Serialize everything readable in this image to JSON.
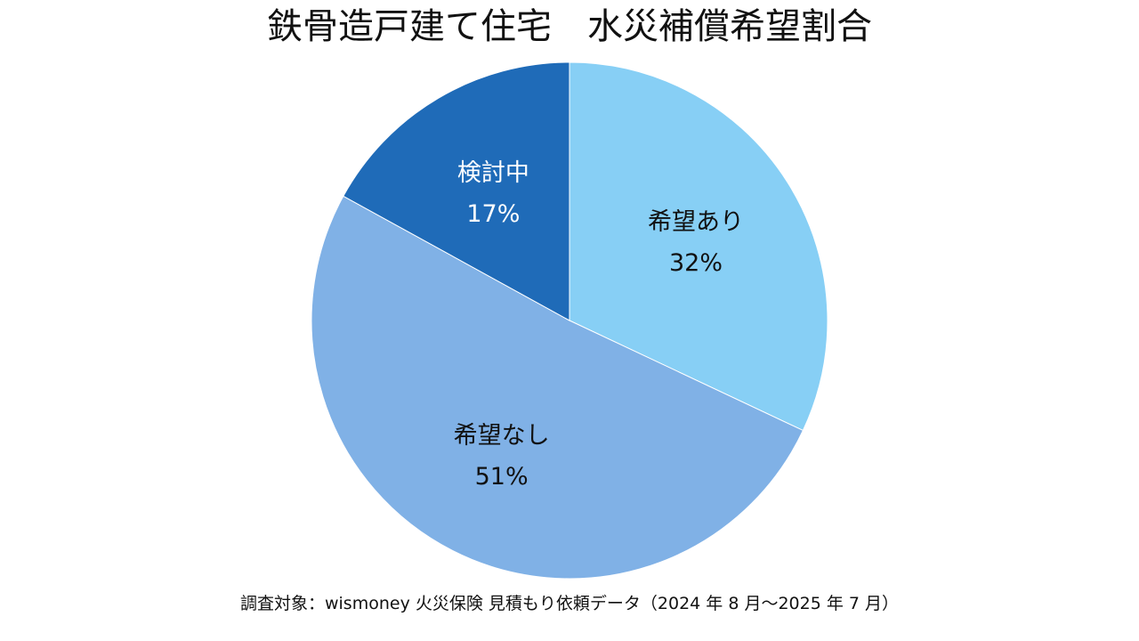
{
  "chart_data": {
    "type": "pie",
    "title": "鉄骨造戸建て住宅　水災補償希望割合",
    "categories": [
      "希望あり",
      "希望なし",
      "検討中"
    ],
    "values": [
      32,
      51,
      17
    ],
    "labels": [
      "32%",
      "51%",
      "17%"
    ],
    "colors": [
      "#87cff5",
      "#80b1e6",
      "#1f6bb8"
    ],
    "label_colors": [
      "#111111",
      "#111111",
      "#ffffff"
    ],
    "start": "12 o'clock",
    "direction": "clockwise"
  },
  "footnote": "調査対象：wismoney 火災保険 見積もり依頼データ（2024 年 8 月～2025 年 7 月）"
}
